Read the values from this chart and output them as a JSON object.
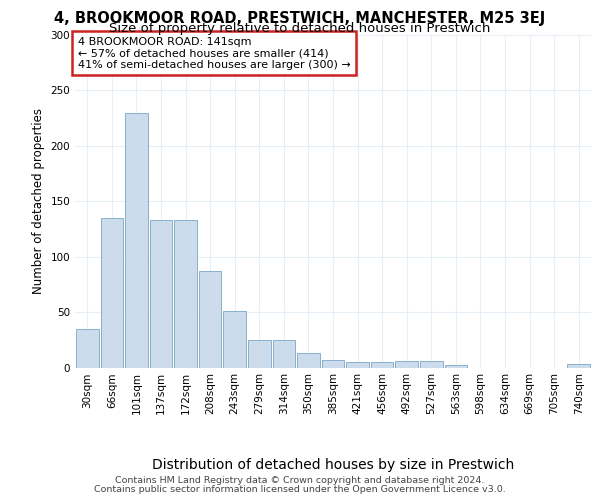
{
  "title1": "4, BROOKMOOR ROAD, PRESTWICH, MANCHESTER, M25 3EJ",
  "title2": "Size of property relative to detached houses in Prestwich",
  "xlabel": "Distribution of detached houses by size in Prestwich",
  "ylabel": "Number of detached properties",
  "bar_labels": [
    "30sqm",
    "66sqm",
    "101sqm",
    "137sqm",
    "172sqm",
    "208sqm",
    "243sqm",
    "279sqm",
    "314sqm",
    "350sqm",
    "385sqm",
    "421sqm",
    "456sqm",
    "492sqm",
    "527sqm",
    "563sqm",
    "598sqm",
    "634sqm",
    "669sqm",
    "705sqm",
    "740sqm"
  ],
  "bar_values": [
    35,
    135,
    230,
    133,
    133,
    87,
    51,
    25,
    25,
    13,
    7,
    5,
    5,
    6,
    6,
    2,
    0,
    0,
    0,
    0,
    3
  ],
  "bar_color": "#cddcec",
  "bar_edge_color": "#8ab0cc",
  "annotation_text": "4 BROOKMOOR ROAD: 141sqm\n← 57% of detached houses are smaller (414)\n41% of semi-detached houses are larger (300) →",
  "ann_edge_color": "#cc2222",
  "footnote_line1": "Contains HM Land Registry data © Crown copyright and database right 2024.",
  "footnote_line2": "Contains public sector information licensed under the Open Government Licence v3.0.",
  "ylim": [
    0,
    300
  ],
  "bg_color": "#ffffff",
  "grid_color": "#e8eef5",
  "property_bar_index": 3,
  "title1_fontsize": 10.5,
  "title2_fontsize": 9.5,
  "xlabel_fontsize": 10,
  "ylabel_fontsize": 8.5,
  "tick_fontsize": 7.5,
  "ann_fontsize": 8,
  "footnote_fontsize": 6.8
}
